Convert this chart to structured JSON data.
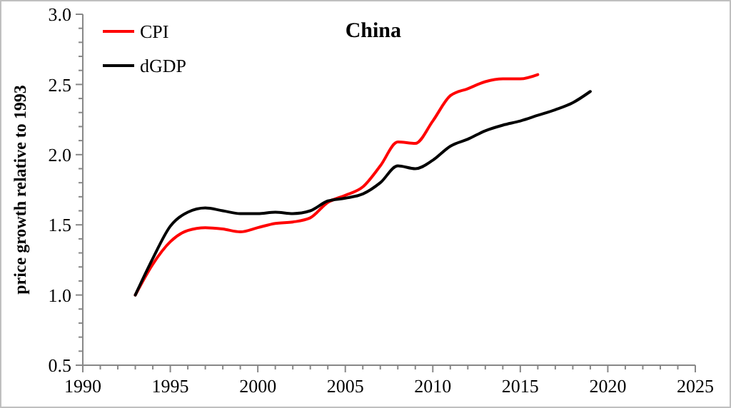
{
  "chart_data": {
    "type": "line",
    "title": "China",
    "ylabel": "price growth relative to 1993",
    "xlim": [
      1990,
      2025
    ],
    "xticks": [
      1990,
      {
        "value": 1991,
        "label": null
      },
      {
        "value": 1992,
        "label": null
      },
      {
        "value": 1993,
        "label": null
      },
      {
        "value": 1994,
        "label": null
      },
      1995,
      {
        "value": 1996,
        "label": null
      },
      {
        "value": 1997,
        "label": null
      },
      {
        "value": 1998,
        "label": null
      },
      {
        "value": 1999,
        "label": null
      },
      2000,
      {
        "value": 2001,
        "label": null
      },
      {
        "value": 2002,
        "label": null
      },
      {
        "value": 2003,
        "label": null
      },
      {
        "value": 2004,
        "label": null
      },
      2005,
      {
        "value": 2006,
        "label": null
      },
      {
        "value": 2007,
        "label": null
      },
      {
        "value": 2008,
        "label": null
      },
      {
        "value": 2009,
        "label": null
      },
      2010,
      {
        "value": 2011,
        "label": null
      },
      {
        "value": 2012,
        "label": null
      },
      {
        "value": 2013,
        "label": null
      },
      {
        "value": 2014,
        "label": null
      },
      2015,
      {
        "value": 2016,
        "label": null
      },
      {
        "value": 2017,
        "label": null
      },
      {
        "value": 2018,
        "label": null
      },
      {
        "value": 2019,
        "label": null
      },
      2020,
      {
        "value": 2021,
        "label": null
      },
      {
        "value": 2022,
        "label": null
      },
      {
        "value": 2023,
        "label": null
      },
      {
        "value": 2024,
        "label": null
      },
      2025
    ],
    "ylim": [
      0.5,
      3.0
    ],
    "yticks": [
      {
        "value": 0.5,
        "label": "0.5"
      },
      {
        "value": 0.6,
        "label": null
      },
      {
        "value": 0.7,
        "label": null
      },
      {
        "value": 0.8,
        "label": null
      },
      {
        "value": 0.9,
        "label": null
      },
      {
        "value": 1.0,
        "label": "1.0"
      },
      {
        "value": 1.1,
        "label": null
      },
      {
        "value": 1.2,
        "label": null
      },
      {
        "value": 1.3,
        "label": null
      },
      {
        "value": 1.4,
        "label": null
      },
      {
        "value": 1.5,
        "label": "1.5"
      },
      {
        "value": 1.6,
        "label": null
      },
      {
        "value": 1.7,
        "label": null
      },
      {
        "value": 1.8,
        "label": null
      },
      {
        "value": 1.9,
        "label": null
      },
      {
        "value": 2.0,
        "label": "2.0"
      },
      {
        "value": 2.1,
        "label": null
      },
      {
        "value": 2.2,
        "label": null
      },
      {
        "value": 2.3,
        "label": null
      },
      {
        "value": 2.4,
        "label": null
      },
      {
        "value": 2.5,
        "label": "2.5"
      },
      {
        "value": 2.6,
        "label": null
      },
      {
        "value": 2.7,
        "label": null
      },
      {
        "value": 2.8,
        "label": null
      },
      {
        "value": 2.9,
        "label": null
      },
      {
        "value": 3.0,
        "label": "3.0"
      }
    ],
    "grid": false,
    "legend": "top left",
    "marker": "none",
    "line_style": "solid",
    "series": [
      {
        "name": "CPI",
        "color": "#ff0000",
        "x": [
          1993,
          1994,
          1995,
          1996,
          1997,
          1998,
          1999,
          2000,
          2001,
          2002,
          2003,
          2004,
          2005,
          2006,
          2007,
          2008,
          2009,
          2010,
          2011,
          2012,
          2013,
          2014,
          2015,
          2016
        ],
        "values": [
          1.0,
          1.22,
          1.38,
          1.46,
          1.48,
          1.47,
          1.45,
          1.48,
          1.51,
          1.52,
          1.55,
          1.66,
          1.71,
          1.77,
          1.92,
          2.09,
          2.08,
          2.24,
          2.42,
          2.47,
          2.52,
          2.54,
          2.54,
          2.57
        ]
      },
      {
        "name": "dGDP",
        "color": "#000000",
        "x": [
          1993,
          1994,
          1995,
          1996,
          1997,
          1998,
          1999,
          2000,
          2001,
          2002,
          2003,
          2004,
          2005,
          2006,
          2007,
          2008,
          2009,
          2010,
          2011,
          2012,
          2013,
          2014,
          2015,
          2016,
          2017,
          2018,
          2019
        ],
        "values": [
          1.0,
          1.26,
          1.49,
          1.59,
          1.62,
          1.6,
          1.58,
          1.58,
          1.59,
          1.58,
          1.6,
          1.67,
          1.69,
          1.72,
          1.8,
          1.92,
          1.9,
          1.96,
          2.06,
          2.11,
          2.17,
          2.21,
          2.24,
          2.28,
          2.32,
          2.37,
          2.45
        ]
      }
    ]
  }
}
